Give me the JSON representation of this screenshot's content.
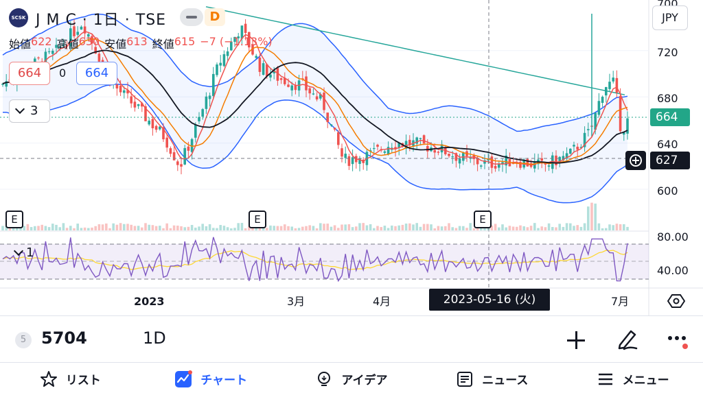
{
  "header": {
    "logo_text": "SCSK",
    "title": "J M C · 1日 · TSE",
    "delay_badge": "D",
    "ohlc": {
      "open_label": "始値",
      "open": "622",
      "high_label": "高値",
      "high": "630",
      "low_label": "安値",
      "low": "613",
      "close_label": "終値",
      "close": "615",
      "change": "−7 (−1.13%)"
    }
  },
  "legend": {
    "red_value": "664",
    "zero": "0",
    "blue_value": "664",
    "collapse_count": "3",
    "rsi_count": "1"
  },
  "currency": "JPY",
  "price_axis": {
    "labels": [
      "720",
      "680",
      "640",
      "600"
    ],
    "top_label": "700",
    "last_price_tag": "664",
    "crosshair_tag": "627"
  },
  "rsi_axis": {
    "labels": [
      "80.00",
      "40.00"
    ]
  },
  "earnings_markers": [
    "E",
    "E",
    "E"
  ],
  "time_axis": {
    "labels": [
      "2023",
      "3月",
      "4月",
      "7月"
    ],
    "crosshair_date": "2023-05-16 (火)"
  },
  "ticker_bar": {
    "badge": "5",
    "symbol": "5704",
    "interval": "1D"
  },
  "bottom_nav": {
    "items": [
      {
        "label": "リスト",
        "icon": "star-icon"
      },
      {
        "label": "チャート",
        "icon": "chart-icon"
      },
      {
        "label": "アイデア",
        "icon": "lightbulb-icon"
      },
      {
        "label": "ニュース",
        "icon": "news-icon"
      },
      {
        "label": "メニュー",
        "icon": "menu-icon"
      }
    ],
    "active_index": 1
  },
  "colors": {
    "up": "#26a69a",
    "down": "#ef5350",
    "bollinger": "#2962ff",
    "ma_long": "#26a69a",
    "ma_mid": "#131722",
    "ma_short": "#f57c00",
    "rsi": "#7e57c2",
    "rsi_ma": "#ffd54f",
    "accent": "#2962ff"
  },
  "chart_data": {
    "type": "candlestick",
    "price_range": [
      590,
      740
    ],
    "rsi_levels": [
      70,
      50,
      30
    ],
    "current_price": 664,
    "crosshair_price": 627
  }
}
